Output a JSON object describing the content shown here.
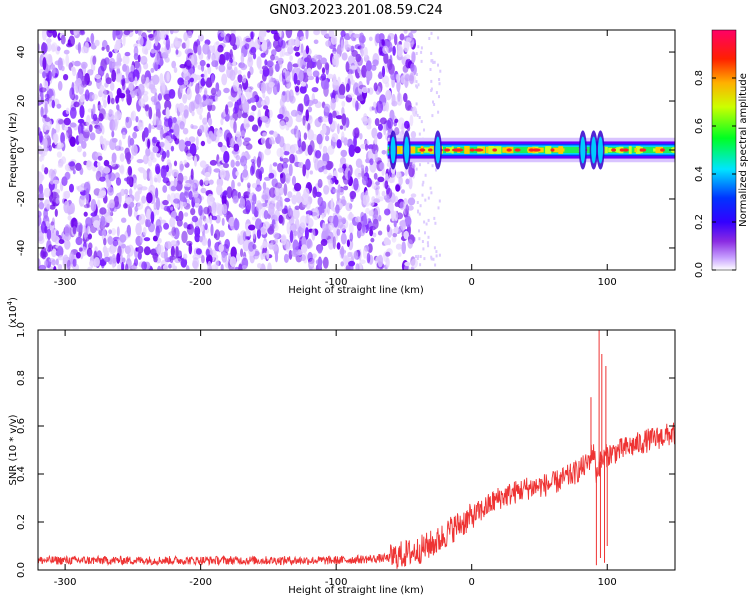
{
  "figure": {
    "title": "GN03.2023.201.08.59.C24"
  },
  "chart_data": [
    {
      "type": "heatmap",
      "title": "GN03.2023.201.08.59.C24",
      "xlabel": "Height of straight line (km)",
      "ylabel": "Frequency (Hz)",
      "xlim": [
        -320,
        150
      ],
      "ylim": [
        -49,
        49
      ],
      "xticks": [
        -300,
        -200,
        -100,
        0,
        100
      ],
      "yticks": [
        -40,
        -20,
        0,
        20,
        40
      ],
      "noise_region_x": [
        -320,
        -42
      ],
      "signal_band": {
        "x": [
          -62,
          150
        ],
        "center_frequency": 0,
        "halfwidth_hz": 2.5,
        "bursts_x": [
          -58,
          -48,
          -25,
          82,
          90,
          95
        ]
      },
      "colorbar": {
        "label": "Normalized spectral amplitude",
        "range": [
          0,
          1
        ],
        "ticks": [
          0.0,
          0.2,
          0.4,
          0.6,
          0.8
        ],
        "colormap": [
          "#ffffff",
          "#c8a2ff",
          "#8a2be2",
          "#6600ff",
          "#0000ff",
          "#00ffff",
          "#00ff00",
          "#ffff00",
          "#ff8000",
          "#ff0000",
          "#ff0066"
        ]
      },
      "grid": false
    },
    {
      "type": "line",
      "xlabel": "Height of straight line (km)",
      "ylabel": "SNR (10 * v/v)",
      "y_multiplier": "(x10",
      "y_multiplier_exp": "4",
      "y_multiplier_close": ")",
      "xlim": [
        -320,
        150
      ],
      "ylim": [
        0,
        1.0
      ],
      "xticks": [
        -300,
        -200,
        -100,
        0,
        100
      ],
      "yticks": [
        0.0,
        0.2,
        0.4,
        0.6,
        0.8,
        1.0
      ],
      "color": "#ee3333",
      "series": [
        {
          "x": [
            -320,
            -200,
            -100,
            -60,
            -40,
            -25,
            -15,
            0,
            10,
            20,
            40,
            60,
            75,
            85,
            90,
            92,
            95,
            100,
            110,
            130,
            150
          ],
          "y": [
            0.04,
            0.04,
            0.04,
            0.05,
            0.08,
            0.12,
            0.17,
            0.22,
            0.26,
            0.3,
            0.34,
            0.36,
            0.4,
            0.44,
            0.5,
            0.4,
            0.45,
            0.48,
            0.5,
            0.54,
            0.57
          ]
        }
      ],
      "spikes": [
        {
          "x": 88,
          "y": 0.72
        },
        {
          "x": 92,
          "y": 0.02
        },
        {
          "x": 94,
          "y": 1.0
        },
        {
          "x": 95,
          "y": 0.05
        },
        {
          "x": 96,
          "y": 0.9
        },
        {
          "x": 98,
          "y": 0.03
        },
        {
          "x": 99,
          "y": 0.85
        },
        {
          "x": 100,
          "y": 0.1
        }
      ],
      "grid": false
    }
  ]
}
